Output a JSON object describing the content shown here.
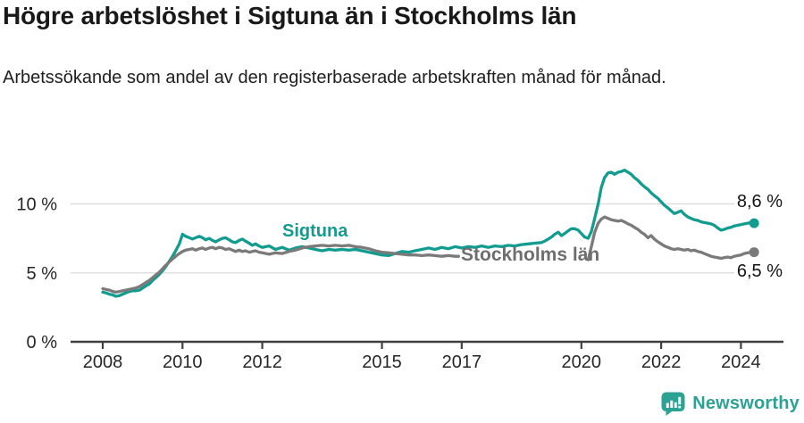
{
  "header": {
    "title": "Högre arbetslöshet i Sigtuna än i Stockholms län",
    "subtitle": "Arbetssökande som andel av den registerbaserade arbetskraften månad för månad."
  },
  "chart_data": {
    "type": "line",
    "title": "Högre arbetslöshet i Sigtuna än i Stockholms län",
    "unit": "%",
    "grid": "horizontal-only",
    "legend_position": "inline-labels-on-lines",
    "x_axis": {
      "ticks": [
        "2008",
        "2010",
        "2012",
        "2015",
        "2017",
        "2020",
        "2022",
        "2024"
      ],
      "tick_values": [
        2008,
        2010,
        2012,
        2015,
        2017,
        2020,
        2022,
        2024
      ],
      "range": [
        2007.2,
        2025.1
      ]
    },
    "y_axis": {
      "ticks": [
        {
          "value": 0,
          "label": "0 %"
        },
        {
          "value": 5,
          "label": "5 %"
        },
        {
          "value": 10,
          "label": "10 %"
        }
      ],
      "range": [
        0,
        13
      ]
    },
    "colors": {
      "sigtuna": "#129C90",
      "stockholm": "#7A7A7A",
      "gridline": "#DADADA",
      "axis": "#404040",
      "tick_label": "#262626"
    },
    "series": [
      {
        "name": "Sigtuna",
        "color": "#129C90",
        "end_label": "8,6 %",
        "end_value": 8.6,
        "points": [
          [
            2008.0,
            3.6
          ],
          [
            2008.08,
            3.55
          ],
          [
            2008.17,
            3.45
          ],
          [
            2008.25,
            3.4
          ],
          [
            2008.33,
            3.3
          ],
          [
            2008.42,
            3.35
          ],
          [
            2008.5,
            3.45
          ],
          [
            2008.58,
            3.55
          ],
          [
            2008.67,
            3.65
          ],
          [
            2008.75,
            3.7
          ],
          [
            2008.83,
            3.7
          ],
          [
            2008.92,
            3.75
          ],
          [
            2009.0,
            3.9
          ],
          [
            2009.08,
            4.05
          ],
          [
            2009.17,
            4.2
          ],
          [
            2009.25,
            4.45
          ],
          [
            2009.33,
            4.65
          ],
          [
            2009.42,
            4.9
          ],
          [
            2009.5,
            5.15
          ],
          [
            2009.58,
            5.45
          ],
          [
            2009.67,
            5.85
          ],
          [
            2009.75,
            6.2
          ],
          [
            2009.83,
            6.6
          ],
          [
            2009.92,
            7.1
          ],
          [
            2010.0,
            7.8
          ],
          [
            2010.08,
            7.65
          ],
          [
            2010.17,
            7.55
          ],
          [
            2010.25,
            7.45
          ],
          [
            2010.33,
            7.55
          ],
          [
            2010.42,
            7.65
          ],
          [
            2010.5,
            7.55
          ],
          [
            2010.58,
            7.4
          ],
          [
            2010.67,
            7.5
          ],
          [
            2010.75,
            7.35
          ],
          [
            2010.83,
            7.25
          ],
          [
            2010.92,
            7.4
          ],
          [
            2011.0,
            7.5
          ],
          [
            2011.08,
            7.55
          ],
          [
            2011.17,
            7.4
          ],
          [
            2011.25,
            7.25
          ],
          [
            2011.33,
            7.2
          ],
          [
            2011.42,
            7.35
          ],
          [
            2011.5,
            7.45
          ],
          [
            2011.58,
            7.3
          ],
          [
            2011.67,
            7.15
          ],
          [
            2011.75,
            7.0
          ],
          [
            2011.83,
            7.1
          ],
          [
            2011.92,
            6.95
          ],
          [
            2012.0,
            6.85
          ],
          [
            2012.17,
            6.95
          ],
          [
            2012.33,
            6.7
          ],
          [
            2012.5,
            6.85
          ],
          [
            2012.67,
            6.65
          ],
          [
            2012.83,
            6.8
          ],
          [
            2013.0,
            6.9
          ],
          [
            2013.17,
            6.8
          ],
          [
            2013.33,
            6.7
          ],
          [
            2013.5,
            6.6
          ],
          [
            2013.67,
            6.7
          ],
          [
            2013.83,
            6.65
          ],
          [
            2014.0,
            6.7
          ],
          [
            2014.17,
            6.65
          ],
          [
            2014.33,
            6.7
          ],
          [
            2014.5,
            6.6
          ],
          [
            2014.67,
            6.5
          ],
          [
            2014.83,
            6.4
          ],
          [
            2015.0,
            6.3
          ],
          [
            2015.17,
            6.25
          ],
          [
            2015.33,
            6.4
          ],
          [
            2015.5,
            6.55
          ],
          [
            2015.67,
            6.5
          ],
          [
            2015.83,
            6.6
          ],
          [
            2016.0,
            6.7
          ],
          [
            2016.17,
            6.8
          ],
          [
            2016.33,
            6.7
          ],
          [
            2016.5,
            6.85
          ],
          [
            2016.67,
            6.75
          ],
          [
            2016.83,
            6.9
          ],
          [
            2017.0,
            6.8
          ],
          [
            2017.17,
            6.9
          ],
          [
            2017.33,
            6.85
          ],
          [
            2017.5,
            6.95
          ],
          [
            2017.67,
            6.85
          ],
          [
            2017.83,
            6.95
          ],
          [
            2018.0,
            6.9
          ],
          [
            2018.17,
            7.0
          ],
          [
            2018.33,
            6.95
          ],
          [
            2018.5,
            7.05
          ],
          [
            2018.67,
            7.1
          ],
          [
            2018.83,
            7.15
          ],
          [
            2019.0,
            7.2
          ],
          [
            2019.08,
            7.3
          ],
          [
            2019.17,
            7.45
          ],
          [
            2019.25,
            7.6
          ],
          [
            2019.33,
            7.8
          ],
          [
            2019.42,
            7.95
          ],
          [
            2019.5,
            7.7
          ],
          [
            2019.58,
            7.85
          ],
          [
            2019.67,
            8.05
          ],
          [
            2019.75,
            8.2
          ],
          [
            2019.83,
            8.2
          ],
          [
            2019.92,
            8.1
          ],
          [
            2020.0,
            7.85
          ],
          [
            2020.08,
            7.6
          ],
          [
            2020.17,
            7.5
          ],
          [
            2020.25,
            8.0
          ],
          [
            2020.33,
            8.9
          ],
          [
            2020.42,
            10.0
          ],
          [
            2020.5,
            11.2
          ],
          [
            2020.58,
            11.9
          ],
          [
            2020.67,
            12.25
          ],
          [
            2020.75,
            12.3
          ],
          [
            2020.83,
            12.15
          ],
          [
            2020.92,
            12.3
          ],
          [
            2021.0,
            12.35
          ],
          [
            2021.08,
            12.45
          ],
          [
            2021.17,
            12.3
          ],
          [
            2021.25,
            12.15
          ],
          [
            2021.33,
            11.9
          ],
          [
            2021.42,
            11.7
          ],
          [
            2021.5,
            11.45
          ],
          [
            2021.58,
            11.25
          ],
          [
            2021.67,
            11.05
          ],
          [
            2021.75,
            10.8
          ],
          [
            2021.83,
            10.6
          ],
          [
            2021.92,
            10.4
          ],
          [
            2022.0,
            10.15
          ],
          [
            2022.08,
            9.9
          ],
          [
            2022.17,
            9.7
          ],
          [
            2022.25,
            9.5
          ],
          [
            2022.33,
            9.3
          ],
          [
            2022.42,
            9.4
          ],
          [
            2022.5,
            9.5
          ],
          [
            2022.58,
            9.25
          ],
          [
            2022.67,
            9.05
          ],
          [
            2022.75,
            8.95
          ],
          [
            2022.83,
            8.85
          ],
          [
            2022.92,
            8.8
          ],
          [
            2023.0,
            8.7
          ],
          [
            2023.08,
            8.65
          ],
          [
            2023.17,
            8.6
          ],
          [
            2023.25,
            8.55
          ],
          [
            2023.33,
            8.45
          ],
          [
            2023.42,
            8.25
          ],
          [
            2023.5,
            8.1
          ],
          [
            2023.58,
            8.15
          ],
          [
            2023.67,
            8.25
          ],
          [
            2023.75,
            8.3
          ],
          [
            2023.83,
            8.4
          ],
          [
            2023.92,
            8.45
          ],
          [
            2024.0,
            8.5
          ],
          [
            2024.08,
            8.55
          ],
          [
            2024.17,
            8.6
          ],
          [
            2024.25,
            8.65
          ],
          [
            2024.33,
            8.6
          ]
        ]
      },
      {
        "name": "Stockholms län",
        "color": "#7A7A7A",
        "end_label": "6,5 %",
        "end_value": 6.5,
        "points": [
          [
            2008.0,
            3.85
          ],
          [
            2008.08,
            3.8
          ],
          [
            2008.17,
            3.75
          ],
          [
            2008.25,
            3.65
          ],
          [
            2008.33,
            3.6
          ],
          [
            2008.42,
            3.65
          ],
          [
            2008.5,
            3.7
          ],
          [
            2008.58,
            3.75
          ],
          [
            2008.67,
            3.8
          ],
          [
            2008.75,
            3.85
          ],
          [
            2008.83,
            3.9
          ],
          [
            2008.92,
            4.0
          ],
          [
            2009.0,
            4.15
          ],
          [
            2009.08,
            4.3
          ],
          [
            2009.17,
            4.45
          ],
          [
            2009.25,
            4.65
          ],
          [
            2009.33,
            4.85
          ],
          [
            2009.42,
            5.05
          ],
          [
            2009.5,
            5.3
          ],
          [
            2009.58,
            5.55
          ],
          [
            2009.67,
            5.8
          ],
          [
            2009.75,
            6.0
          ],
          [
            2009.83,
            6.2
          ],
          [
            2009.92,
            6.4
          ],
          [
            2010.0,
            6.55
          ],
          [
            2010.08,
            6.65
          ],
          [
            2010.17,
            6.7
          ],
          [
            2010.25,
            6.75
          ],
          [
            2010.33,
            6.65
          ],
          [
            2010.42,
            6.75
          ],
          [
            2010.5,
            6.8
          ],
          [
            2010.58,
            6.7
          ],
          [
            2010.67,
            6.8
          ],
          [
            2010.75,
            6.85
          ],
          [
            2010.83,
            6.75
          ],
          [
            2010.92,
            6.85
          ],
          [
            2011.0,
            6.8
          ],
          [
            2011.08,
            6.7
          ],
          [
            2011.17,
            6.75
          ],
          [
            2011.25,
            6.65
          ],
          [
            2011.33,
            6.55
          ],
          [
            2011.42,
            6.65
          ],
          [
            2011.5,
            6.55
          ],
          [
            2011.58,
            6.6
          ],
          [
            2011.67,
            6.5
          ],
          [
            2011.75,
            6.55
          ],
          [
            2011.83,
            6.6
          ],
          [
            2011.92,
            6.5
          ],
          [
            2012.0,
            6.45
          ],
          [
            2012.17,
            6.35
          ],
          [
            2012.33,
            6.45
          ],
          [
            2012.5,
            6.4
          ],
          [
            2012.67,
            6.55
          ],
          [
            2012.83,
            6.65
          ],
          [
            2013.0,
            6.8
          ],
          [
            2013.17,
            6.9
          ],
          [
            2013.33,
            6.95
          ],
          [
            2013.5,
            7.0
          ],
          [
            2013.67,
            6.95
          ],
          [
            2013.83,
            7.0
          ],
          [
            2014.0,
            6.95
          ],
          [
            2014.17,
            7.0
          ],
          [
            2014.33,
            6.9
          ],
          [
            2014.5,
            6.85
          ],
          [
            2014.67,
            6.75
          ],
          [
            2014.83,
            6.6
          ],
          [
            2015.0,
            6.5
          ],
          [
            2015.17,
            6.45
          ],
          [
            2015.33,
            6.4
          ],
          [
            2015.5,
            6.35
          ],
          [
            2015.67,
            6.3
          ],
          [
            2015.83,
            6.3
          ],
          [
            2016.0,
            6.25
          ],
          [
            2016.17,
            6.3
          ],
          [
            2016.33,
            6.25
          ],
          [
            2016.5,
            6.2
          ],
          [
            2016.67,
            6.25
          ],
          [
            2016.83,
            6.2
          ],
          [
            2016.92,
            6.2
          ],
          [
            2017.08,
            null
          ],
          [
            2019.92,
            null
          ],
          [
            2020.17,
            5.95
          ],
          [
            2020.25,
            6.9
          ],
          [
            2020.33,
            7.9
          ],
          [
            2020.42,
            8.6
          ],
          [
            2020.5,
            8.9
          ],
          [
            2020.58,
            9.05
          ],
          [
            2020.67,
            8.95
          ],
          [
            2020.75,
            8.85
          ],
          [
            2020.83,
            8.8
          ],
          [
            2020.92,
            8.75
          ],
          [
            2021.0,
            8.8
          ],
          [
            2021.08,
            8.7
          ],
          [
            2021.17,
            8.55
          ],
          [
            2021.25,
            8.45
          ],
          [
            2021.33,
            8.3
          ],
          [
            2021.42,
            8.15
          ],
          [
            2021.5,
            7.95
          ],
          [
            2021.58,
            7.8
          ],
          [
            2021.67,
            7.55
          ],
          [
            2021.75,
            7.7
          ],
          [
            2021.83,
            7.45
          ],
          [
            2021.92,
            7.25
          ],
          [
            2022.0,
            7.1
          ],
          [
            2022.08,
            6.95
          ],
          [
            2022.17,
            6.85
          ],
          [
            2022.25,
            6.75
          ],
          [
            2022.33,
            6.7
          ],
          [
            2022.42,
            6.75
          ],
          [
            2022.5,
            6.7
          ],
          [
            2022.58,
            6.65
          ],
          [
            2022.67,
            6.7
          ],
          [
            2022.75,
            6.6
          ],
          [
            2022.83,
            6.65
          ],
          [
            2022.92,
            6.55
          ],
          [
            2023.0,
            6.5
          ],
          [
            2023.08,
            6.4
          ],
          [
            2023.17,
            6.3
          ],
          [
            2023.25,
            6.2
          ],
          [
            2023.33,
            6.15
          ],
          [
            2023.42,
            6.1
          ],
          [
            2023.5,
            6.05
          ],
          [
            2023.58,
            6.1
          ],
          [
            2023.67,
            6.15
          ],
          [
            2023.75,
            6.1
          ],
          [
            2023.83,
            6.2
          ],
          [
            2023.92,
            6.25
          ],
          [
            2024.0,
            6.3
          ],
          [
            2024.08,
            6.4
          ],
          [
            2024.17,
            6.45
          ],
          [
            2024.25,
            6.5
          ],
          [
            2024.33,
            6.5
          ]
        ]
      }
    ]
  },
  "footer": {
    "brand": "Newsworthy",
    "brand_color": "#2CA295"
  }
}
